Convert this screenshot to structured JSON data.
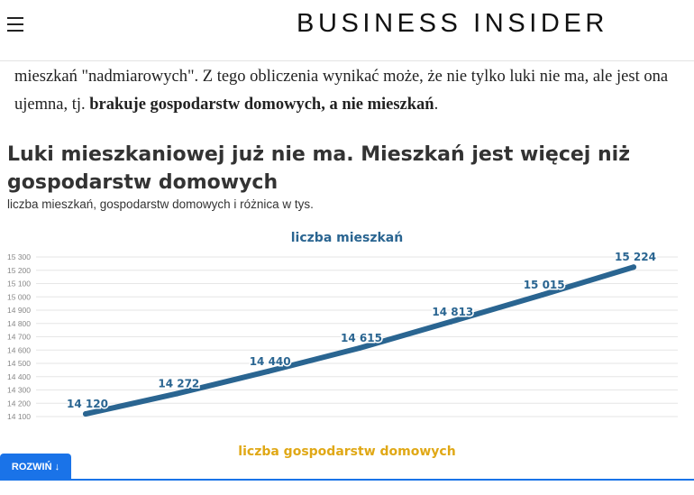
{
  "header": {
    "logo_text": "BUSINESS INSIDER",
    "menu_icon": "hamburger-menu-icon"
  },
  "article": {
    "para_part1": "mieszkań \"nadmiarowych\". Z tego obliczenia wynikać może, że nie tylko luki nie ma, ale jest ona ujemna, tj. ",
    "para_bold": "brakuje gospodarstw domowych, a nie mieszkań",
    "para_end": "."
  },
  "chart": {
    "title": "Luki mieszkaniowej już nie ma. Mieszkań jest więcej niż gospodarstw domowych",
    "subtitle": "liczba mieszkań, gospodarstw domowych i różnica w tys.",
    "series1_title": "liczba mieszkań",
    "series2_title": "liczba gospodarstw domowych",
    "expand_label": "ROZWIŃ ↓"
  },
  "colors": {
    "series1": "#2a6591",
    "series2": "#e0a816",
    "button": "#1a73e8"
  },
  "chart_data": {
    "type": "line",
    "title": "liczba mieszkań",
    "ylim": [
      14100,
      15300
    ],
    "yticks": [
      14100,
      14200,
      14300,
      14400,
      14500,
      14600,
      14700,
      14800,
      14900,
      15000,
      15100,
      15200,
      15300
    ],
    "ytick_labels": [
      "14 100",
      "14 200",
      "14 300",
      "14 400",
      "14 500",
      "14 600",
      "14 700",
      "14 800",
      "14 900",
      "15 000",
      "15 100",
      "15 200",
      "15 300"
    ],
    "grid": true,
    "series": [
      {
        "values": [
          14120,
          14272,
          14440,
          14615,
          14813,
          15015,
          15224
        ],
        "labels": [
          "14 120",
          "14 272",
          "14 440",
          "14 615",
          "14 813",
          "15 015",
          "15 224"
        ]
      }
    ]
  }
}
